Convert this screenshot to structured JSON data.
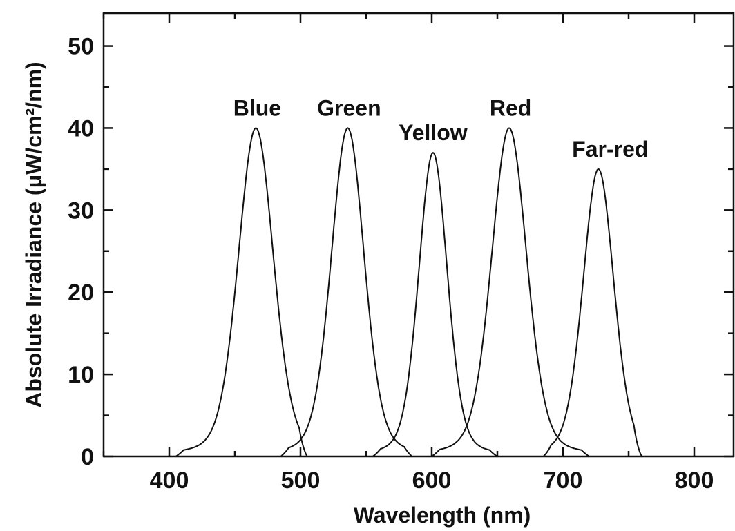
{
  "chart_data": {
    "type": "line",
    "title": "",
    "xlabel": "Wavelength (nm)",
    "ylabel": "Absolute Irradiance (μW/cm²/nm)",
    "xlim": [
      350,
      830
    ],
    "ylim": [
      0,
      54
    ],
    "xticks": [
      400,
      500,
      600,
      700,
      800
    ],
    "yticks": [
      0,
      10,
      20,
      30,
      40,
      50
    ],
    "grid": false,
    "legend": "none",
    "series": [
      {
        "name": "Blue",
        "peak_wavelength": 466,
        "peak_value": 40,
        "fwhm": 32,
        "range": [
          405,
          505
        ]
      },
      {
        "name": "Green",
        "peak_wavelength": 536,
        "peak_value": 40,
        "fwhm": 30,
        "range": [
          485,
          585
        ]
      },
      {
        "name": "Yellow",
        "peak_wavelength": 601,
        "peak_value": 37,
        "fwhm": 26,
        "range": [
          555,
          650
        ]
      },
      {
        "name": "Red",
        "peak_wavelength": 659,
        "peak_value": 40,
        "fwhm": 32,
        "range": [
          600,
          720
        ]
      },
      {
        "name": "Far-red",
        "peak_wavelength": 727,
        "peak_value": 35,
        "fwhm": 28,
        "range": [
          685,
          760
        ]
      }
    ],
    "annotations": [
      "Blue",
      "Green",
      "Yellow",
      "Red",
      "Far-red"
    ]
  }
}
